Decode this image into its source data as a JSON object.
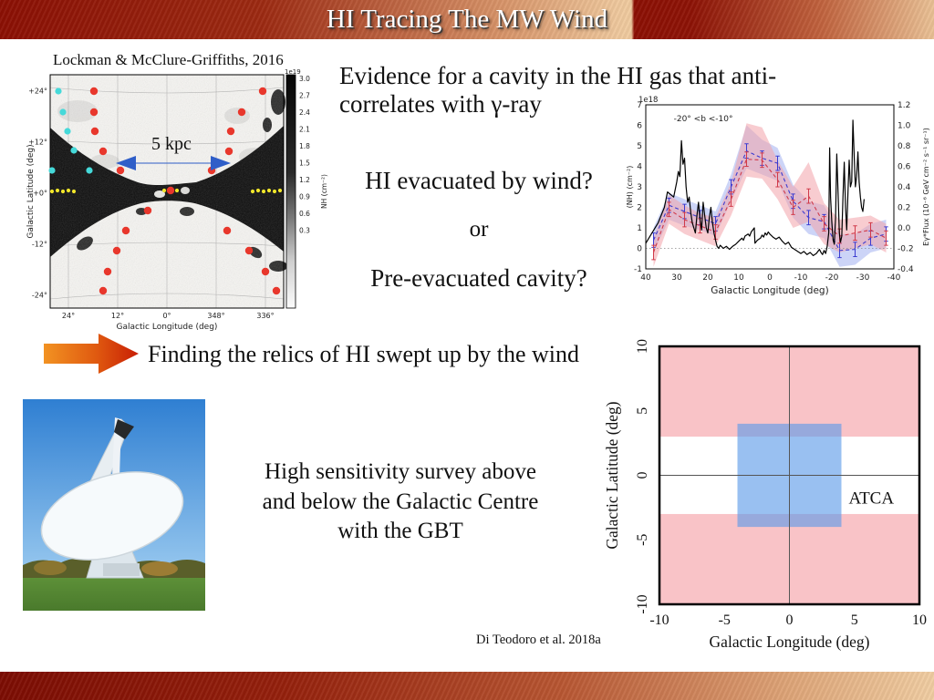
{
  "slide": {
    "title": "HI Tracing The MW Wind",
    "map_caption": "Lockman & McClure-Griffiths, 2016",
    "evidence_line1": "Evidence for a cavity in the HI gas that anti-",
    "evidence_line2": "correlates with γ-ray",
    "question1": "HI evacuated by wind?",
    "question_or": "or",
    "question2": "Pre-evacuated cavity?",
    "finding": "Finding the relics of HI swept up by the wind",
    "survey_line1": "High sensitivity survey above",
    "survey_line2": "and below the Galactic Centre",
    "survey_line3": "with the GBT",
    "citation": "Di Teodoro et al. 2018a"
  },
  "colors": {
    "banner_dark": "#8c1004",
    "banner_light": "#efcb9f",
    "accent_blue": "#2f5ec8",
    "atca_blue": "#2e76d4",
    "dot_red": "#e8372c",
    "dot_cyan": "#45d9d9",
    "dot_yellow": "#f2e62a",
    "band_pink": "#f9c3c7",
    "box_blue": "#5a9ae8",
    "arrow_orange": "#f29222",
    "arrow_red": "#c81e04"
  },
  "hi_map": {
    "annotation": "5 kpc",
    "xlabel": "Galactic Longitude (deg)",
    "ylabel": "Galactic Latitude (deg)",
    "xticks": [
      "24°",
      "12°",
      "0°",
      "348°",
      "336°"
    ],
    "yticks": [
      "+24°",
      "+12°",
      "+0°",
      "-12°",
      "-24°"
    ],
    "colorbar": {
      "scale": "1e19",
      "ticks": [
        "3.0",
        "2.7",
        "2.4",
        "2.1",
        "1.8",
        "1.5",
        "1.2",
        "0.9",
        "0.6",
        "0.3"
      ],
      "label": "NH (cm⁻²)"
    },
    "red_dots": [
      [
        48,
        18
      ],
      [
        48,
        41
      ],
      [
        49,
        62
      ],
      [
        58,
        84
      ],
      [
        77,
        105
      ],
      [
        107,
        149
      ],
      [
        83,
        171
      ],
      [
        73,
        193
      ],
      [
        63,
        216
      ],
      [
        58,
        237
      ],
      [
        132,
        127
      ],
      [
        233,
        18
      ],
      [
        210,
        41
      ],
      [
        198,
        62
      ],
      [
        196,
        84
      ],
      [
        177,
        105
      ],
      [
        194,
        171
      ],
      [
        218,
        193
      ],
      [
        236,
        216
      ],
      [
        248,
        237
      ]
    ],
    "cyan_dots": [
      [
        9,
        18
      ],
      [
        14,
        41
      ],
      [
        19,
        62
      ],
      [
        26,
        83
      ],
      [
        43,
        105
      ],
      [
        2,
        105
      ]
    ],
    "yellow_dots": [
      [
        2,
        128
      ],
      [
        8,
        127
      ],
      [
        14,
        128
      ],
      [
        20,
        127
      ],
      [
        26,
        128
      ],
      [
        125,
        127
      ],
      [
        139,
        127
      ],
      [
        222,
        128
      ],
      [
        228,
        127
      ],
      [
        234,
        128
      ],
      [
        240,
        127
      ],
      [
        246,
        128
      ],
      [
        252,
        127
      ]
    ]
  },
  "chart_data": [
    {
      "type": "line",
      "title": "HI column density vs gamma-ray flux",
      "annotation": "-20° <b <-10°",
      "scale_note": "1e18",
      "xlabel": "Galactic Longitude (deg)",
      "ylabel_left": "(NH) (cm⁻²)",
      "ylabel_right": "Eγ*Flux (10⁻⁶ GeV cm⁻² s⁻¹ sr⁻¹)",
      "xlim": [
        40,
        -40
      ],
      "ylim_left": [
        -1,
        7
      ],
      "ylim_right": [
        -0.4,
        1.2
      ],
      "xticks": [
        40,
        30,
        20,
        10,
        0,
        -10,
        -20,
        -30,
        -40
      ],
      "yticks_left": [
        7,
        6,
        5,
        4,
        3,
        2,
        1,
        0,
        -1
      ],
      "yticks_right": [
        1.2,
        1.0,
        0.8,
        0.6,
        0.4,
        0.2,
        0.0,
        -0.2,
        -0.4
      ],
      "x": [
        37.5,
        32.5,
        27.5,
        22.5,
        17.5,
        12.5,
        7.5,
        2.5,
        -2.5,
        -7.5,
        -12.5,
        -17.5,
        -22.5,
        -27.5,
        -32.5,
        -37.5
      ],
      "series": [
        {
          "name": "NHI blue dashed (left axis, 1e18 cm-2)",
          "color": "#3b3bd0",
          "style": "dashed",
          "values": [
            0.4,
            2.1,
            1.8,
            1.5,
            1.2,
            3.0,
            4.75,
            4.4,
            4.15,
            2.3,
            1.5,
            1.3,
            -0.1,
            -0.05,
            0.5,
            0.7
          ],
          "band_upper": [
            1.0,
            2.7,
            2.4,
            2.1,
            1.8,
            3.6,
            6.0,
            5.3,
            4.9,
            3.1,
            2.3,
            2.1,
            0.7,
            0.7,
            1.2,
            1.4
          ],
          "band_lower": [
            -0.2,
            1.4,
            1.1,
            0.9,
            0.6,
            2.3,
            3.9,
            3.6,
            3.3,
            1.5,
            0.7,
            0.5,
            -0.9,
            -0.8,
            -0.2,
            0.0
          ]
        },
        {
          "name": "NHI red dashed (left axis, 1e18 cm-2)",
          "color": "#d03a4a",
          "style": "dashed",
          "values": [
            -0.2,
            1.9,
            1.4,
            1.1,
            0.8,
            2.4,
            4.35,
            4.3,
            3.35,
            2.0,
            2.55,
            1.2,
            0.6,
            0.75,
            0.9,
            0.5
          ],
          "band_upper": [
            0.5,
            2.6,
            2.1,
            1.7,
            1.5,
            3.2,
            6.1,
            5.9,
            4.3,
            3.0,
            4.2,
            2.2,
            1.4,
            1.5,
            1.6,
            1.2
          ],
          "band_lower": [
            -0.9,
            1.2,
            0.7,
            0.4,
            0.1,
            1.6,
            3.5,
            3.4,
            2.4,
            1.0,
            1.3,
            0.2,
            -0.2,
            0.0,
            0.2,
            -0.2
          ]
        },
        {
          "name": "gamma-ray flux black solid (right axis)",
          "color": "#000000",
          "style": "solid",
          "points": [
            [
              40,
              -0.15
            ],
            [
              38,
              -0.05
            ],
            [
              36,
              0.05
            ],
            [
              34,
              0.2
            ],
            [
              33,
              0.35
            ],
            [
              31,
              0.3
            ],
            [
              30,
              0.45
            ],
            [
              29.5,
              0.55
            ],
            [
              29,
              0.5
            ],
            [
              28.5,
              0.85
            ],
            [
              28,
              0.62
            ],
            [
              27.5,
              0.68
            ],
            [
              27,
              0.4
            ],
            [
              26.5,
              0.25
            ],
            [
              26,
              0.3
            ],
            [
              25.5,
              0.15
            ],
            [
              25,
              0.05
            ],
            [
              24.5,
              0.0
            ],
            [
              24,
              -0.05
            ],
            [
              23.5,
              0.12
            ],
            [
              23,
              0.25
            ],
            [
              22.5,
              0.08
            ],
            [
              22,
              -0.02
            ],
            [
              21.5,
              0.25
            ],
            [
              21,
              0.12
            ],
            [
              20.5,
              0.0
            ],
            [
              20,
              -0.05
            ],
            [
              19.5,
              0.1
            ],
            [
              19,
              0.2
            ],
            [
              18.5,
              0.05
            ],
            [
              18,
              -0.05
            ],
            [
              17.5,
              -0.12
            ],
            [
              17,
              -0.18
            ],
            [
              16.5,
              -0.2
            ],
            [
              16,
              -0.17
            ],
            [
              15,
              -0.2
            ],
            [
              14,
              -0.18
            ],
            [
              13,
              -0.21
            ],
            [
              12,
              -0.18
            ],
            [
              11,
              -0.16
            ],
            [
              10,
              -0.13
            ],
            [
              9,
              -0.1
            ],
            [
              8.5,
              -0.12
            ],
            [
              8,
              -0.08
            ],
            [
              7,
              -0.06
            ],
            [
              6.5,
              -0.08
            ],
            [
              6,
              -0.04
            ],
            [
              5.5,
              -0.02
            ],
            [
              5,
              0.0
            ],
            [
              4.8,
              -0.15
            ],
            [
              4,
              -0.12
            ],
            [
              3,
              -0.1
            ],
            [
              2.5,
              -0.07
            ],
            [
              2,
              -0.09
            ],
            [
              1.5,
              -0.05
            ],
            [
              1,
              -0.07
            ],
            [
              0.5,
              -0.04
            ],
            [
              0,
              -0.06
            ],
            [
              -1,
              -0.09
            ],
            [
              -2,
              -0.11
            ],
            [
              -3,
              -0.09
            ],
            [
              -4,
              -0.13
            ],
            [
              -5,
              -0.16
            ],
            [
              -6,
              -0.14
            ],
            [
              -7,
              -0.19
            ],
            [
              -8,
              -0.21
            ],
            [
              -9,
              -0.23
            ],
            [
              -10,
              -0.25
            ],
            [
              -11,
              -0.23
            ],
            [
              -12,
              -0.26
            ],
            [
              -13,
              -0.24
            ],
            [
              -14,
              -0.27
            ],
            [
              -15,
              -0.25
            ],
            [
              -16,
              -0.21
            ],
            [
              -16.5,
              -0.24
            ],
            [
              -17,
              -0.26
            ],
            [
              -17.5,
              -0.22
            ],
            [
              -18,
              -0.25
            ],
            [
              -18.5,
              -0.18
            ],
            [
              -19,
              -0.05
            ],
            [
              -19.3,
              0.78
            ],
            [
              -19.6,
              0.3
            ],
            [
              -20,
              0.05
            ],
            [
              -20.4,
              -0.12
            ],
            [
              -20.8,
              -0.16
            ],
            [
              -21.2,
              0.1
            ],
            [
              -21.6,
              0.72
            ],
            [
              -22,
              0.35
            ],
            [
              -22.4,
              -0.05
            ],
            [
              -22.8,
              -0.14
            ],
            [
              -23.2,
              -0.08
            ],
            [
              -23.6,
              0.3
            ],
            [
              -24,
              0.64
            ],
            [
              -24.4,
              0.2
            ],
            [
              -24.8,
              -0.02
            ],
            [
              -25.2,
              0.35
            ],
            [
              -25.6,
              0.66
            ],
            [
              -26,
              0.4
            ],
            [
              -26.4,
              0.45
            ],
            [
              -26.8,
              1.05
            ],
            [
              -27.2,
              0.7
            ],
            [
              -27.6,
              0.4
            ],
            [
              -28,
              0.5
            ],
            [
              -28.4,
              0.74
            ],
            [
              -28.8,
              0.45
            ],
            [
              -29.2,
              0.3
            ],
            [
              -29.6,
              0.2
            ],
            [
              -30,
              0.16
            ],
            [
              -30.4,
              0.28
            ]
          ]
        }
      ]
    },
    {
      "type": "area",
      "title": "Survey coverage",
      "xlabel": "Galactic Longitude (deg)",
      "ylabel": "Galactic Latitude (deg)",
      "xlim": [
        -10,
        10
      ],
      "ylim": [
        -10,
        10
      ],
      "xticks": [
        -10,
        -5,
        0,
        5,
        10
      ],
      "yticks": [
        10,
        5,
        0,
        -5,
        -10
      ],
      "regions": [
        {
          "name": "GBT survey region (pink bands)",
          "color": "#f9c3c7",
          "rects": [
            {
              "x": [
                -10,
                10
              ],
              "y": [
                3,
                10
              ]
            },
            {
              "x": [
                -10,
                10
              ],
              "y": [
                -10,
                -3
              ]
            }
          ]
        },
        {
          "name": "ATCA survey region (blue box)",
          "color": "#5a9ae8",
          "opacity": 0.62,
          "rects": [
            {
              "x": [
                -4,
                4
              ],
              "y": [
                -4,
                4
              ]
            }
          ],
          "label": "ATCA",
          "label_pos": [
            6.3,
            -2.2
          ]
        }
      ]
    }
  ]
}
